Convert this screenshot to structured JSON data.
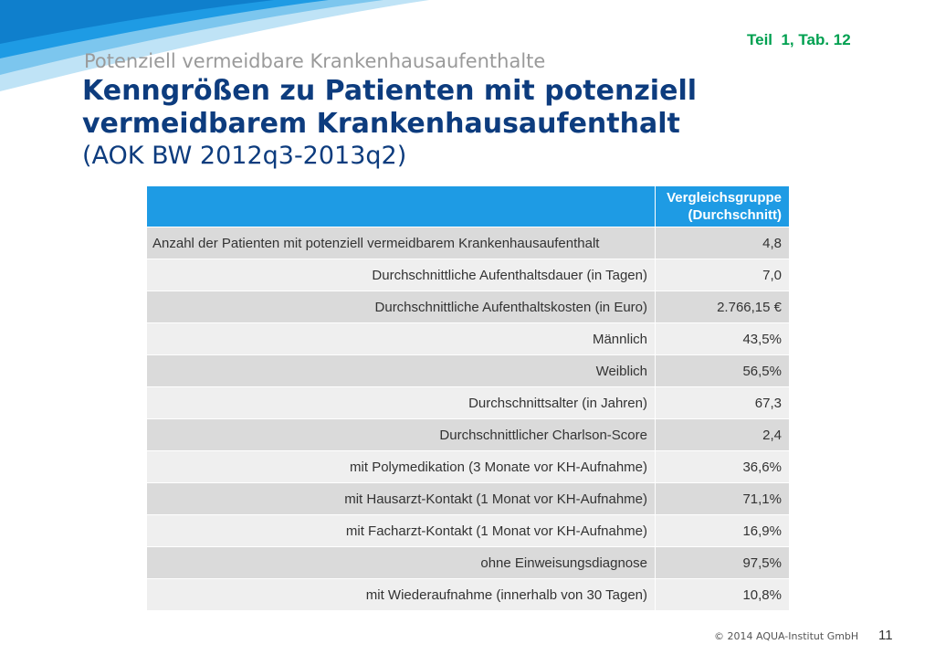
{
  "slide": {
    "reference": "Teil  1, Tab. 12",
    "supertitle": "Potenziell vermeidbare Krankenhausaufenthalte",
    "title": "Kenngrößen zu Patienten mit potenziell vermeidbarem Krankenhausaufenthalt",
    "subtitle": "(AOK BW 2012q3-2013q2)",
    "footer": "© 2014 AQUA-Institut GmbH",
    "page_number": "11",
    "colors": {
      "title": "#0D3C7E",
      "header_fill": "#1E9BE4",
      "reference": "#00A050",
      "row_dark": "#DADADA",
      "row_light": "#EFEFEF"
    }
  },
  "table": {
    "header": {
      "group_line1": "Vergleichsgruppe",
      "group_line2": "(Durchschnitt)"
    },
    "rows": [
      {
        "label": "Anzahl der Patienten mit potenziell vermeidbarem  Krankenhausaufenthalt",
        "value": "4,8"
      },
      {
        "label": "Durchschnittliche  Aufenthaltsdauer  (in Tagen)",
        "value": "7,0"
      },
      {
        "label": "Durchschnittliche  Aufenthaltskosten  (in Euro)",
        "value": "2.766,15 €"
      },
      {
        "label": "Männlich",
        "value": "43,5%"
      },
      {
        "label": "Weiblich",
        "value": "56,5%"
      },
      {
        "label": "Durchschnittsalter (in Jahren)",
        "value": "67,3"
      },
      {
        "label": "Durchschnittlicher Charlson-Score",
        "value": "2,4"
      },
      {
        "label": "mit Polymedikation (3 Monate vor KH-Aufnahme)",
        "value": "36,6%"
      },
      {
        "label": "mit Hausarzt-Kontakt  (1 Monat vor KH-Aufnahme)",
        "value": "71,1%"
      },
      {
        "label": "mit Facharzt-Kontakt  (1 Monat vor KH-Aufnahme)",
        "value": "16,9%"
      },
      {
        "label": "ohne Einweisungsdiagnose",
        "value": "97,5%"
      },
      {
        "label": "mit Wiederaufnahme  (innerhalb von 30 Tagen)",
        "value": "10,8%"
      }
    ]
  }
}
